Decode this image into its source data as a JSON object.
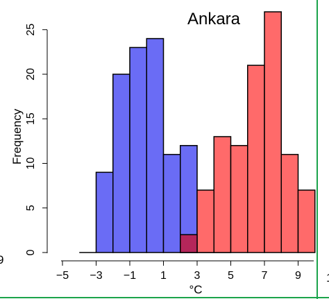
{
  "colors": {
    "series_a": "#6a6cf5",
    "series_b": "#ff6a6a",
    "overlap": "#b5265a",
    "frame": "#1aa34a"
  },
  "chart_data": {
    "type": "bar",
    "title": "Ankara",
    "xlabel": "°C",
    "ylabel": "Frequency",
    "bin_width": 1,
    "xlim": [
      -5,
      10
    ],
    "ylim": [
      0,
      27
    ],
    "x_ticks": [
      -5,
      -3,
      -1,
      1,
      3,
      5,
      7,
      9
    ],
    "x_tick_labels": [
      "−5",
      "−3",
      "−1",
      "1",
      "3",
      "5",
      "7",
      "9"
    ],
    "y_ticks": [
      0,
      5,
      10,
      15,
      20,
      25
    ],
    "y_tick_labels": [
      "0",
      "5",
      "10",
      "15",
      "20",
      "25"
    ],
    "edge_labels": {
      "left": "9",
      "right": "1"
    },
    "series": [
      {
        "bin_start": [
          -4,
          -3,
          -2,
          -1,
          0,
          1,
          2,
          3,
          4
        ],
        "values": [
          0,
          9,
          20,
          23,
          24,
          11,
          12,
          0,
          0
        ]
      },
      {
        "bin_start": [
          2,
          3,
          4,
          5,
          6,
          7,
          8,
          9
        ],
        "values": [
          2,
          7,
          13,
          12,
          21,
          27,
          11,
          7
        ]
      }
    ]
  }
}
